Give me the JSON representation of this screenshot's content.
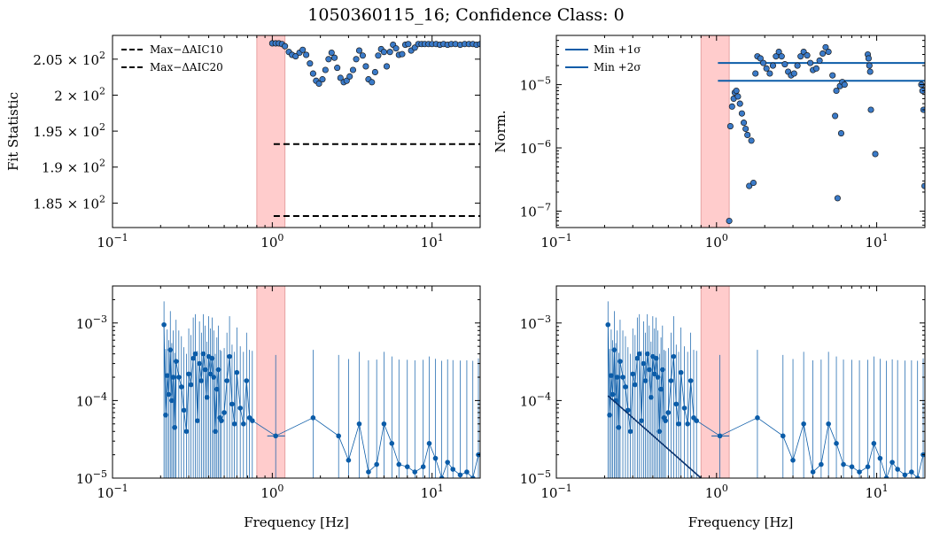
{
  "figure": {
    "title": "1050360115_16; Confidence Class: 0"
  },
  "colors": {
    "band_fill": "#ffcccc",
    "band_edge": "#e6a3a3",
    "points": "#3a7ac8",
    "point_edge": "#1a1a1a",
    "lines": "#0b5ca8",
    "axes": "#000000"
  },
  "chart_data": [
    {
      "id": "fit-statistic",
      "type": "scatter",
      "title": "",
      "xlabel": "",
      "ylabel": "Fit Statistic",
      "xscale": "log",
      "yscale": "linear",
      "xlim": [
        0.1,
        20
      ],
      "ylim": [
        181.6,
        208.3
      ],
      "x_ticks": [
        {
          "value": 0.1,
          "base": "10",
          "exp": "−1"
        },
        {
          "value": 1,
          "base": "10",
          "exp": "0"
        },
        {
          "value": 10,
          "base": "10",
          "exp": "1"
        }
      ],
      "y_ticks": [
        {
          "value": 185,
          "mant": "1.85 × 10",
          "exp": "2"
        },
        {
          "value": 190,
          "mant": "1.9 × 10",
          "exp": "2"
        },
        {
          "value": 195,
          "mant": "1.95 × 10",
          "exp": "2"
        },
        {
          "value": 200,
          "mant": "2 × 10",
          "exp": "2"
        },
        {
          "value": 205,
          "mant": "2.05 × 10",
          "exp": "2"
        }
      ],
      "shaded_band": [
        0.8,
        1.2
      ],
      "legend": {
        "position": "top-left",
        "entries": [
          "Max−ΔAIC10",
          "Max−ΔAIC20"
        ]
      },
      "hlines": [
        {
          "label": "Max−ΔAIC10",
          "y": 193.2,
          "x_from": 1.02,
          "x_to": 20,
          "style": "dashed"
        },
        {
          "label": "Max−ΔAIC20",
          "y": 183.2,
          "x_from": 1.02,
          "x_to": 20,
          "style": "dashed"
        }
      ],
      "x": [
        1.0,
        1.05,
        1.1,
        1.15,
        1.2,
        1.27,
        1.33,
        1.4,
        1.48,
        1.55,
        1.63,
        1.72,
        1.8,
        1.88,
        1.96,
        2.06,
        2.15,
        2.25,
        2.35,
        2.45,
        2.55,
        2.67,
        2.8,
        2.92,
        3.05,
        3.2,
        3.35,
        3.5,
        3.68,
        3.85,
        4.0,
        4.2,
        4.4,
        4.6,
        4.8,
        5.0,
        5.2,
        5.45,
        5.7,
        5.95,
        6.2,
        6.5,
        6.8,
        7.1,
        7.4,
        7.8,
        8.2,
        8.6,
        9.0,
        9.5,
        10.0,
        10.6,
        11.2,
        11.8,
        12.5,
        13.2,
        14.0,
        15.0,
        16.0,
        17.0,
        18.0,
        19.0,
        20.0
      ],
      "y": [
        207.2,
        207.2,
        207.2,
        207.1,
        206.8,
        206.0,
        205.6,
        205.4,
        205.9,
        206.3,
        205.6,
        204.4,
        203.0,
        202.0,
        201.6,
        202.2,
        203.5,
        205.0,
        205.9,
        205.2,
        203.8,
        202.4,
        201.8,
        202.0,
        202.6,
        203.5,
        205.0,
        206.2,
        205.5,
        204.0,
        202.2,
        201.8,
        203.2,
        205.5,
        206.4,
        206.0,
        204.0,
        206.0,
        207.0,
        206.5,
        205.6,
        205.7,
        207.0,
        207.1,
        206.2,
        206.6,
        207.1,
        207.1,
        207.1,
        207.1,
        207.1,
        207.1,
        207.0,
        207.1,
        207.0,
        207.1,
        207.1,
        207.0,
        207.1,
        207.1,
        207.1,
        207.0,
        207.1
      ]
    },
    {
      "id": "norm",
      "type": "scatter",
      "title": "",
      "xlabel": "",
      "ylabel": "Norm.",
      "xscale": "log",
      "yscale": "log",
      "xlim": [
        0.1,
        20
      ],
      "ylim": [
        5.5e-08,
        6e-05
      ],
      "x_ticks": [
        {
          "value": 0.1,
          "base": "10",
          "exp": "−1"
        },
        {
          "value": 1,
          "base": "10",
          "exp": "0"
        },
        {
          "value": 10,
          "base": "10",
          "exp": "1"
        }
      ],
      "y_ticks": [
        {
          "value": 1e-07,
          "base": "10",
          "exp": "−7"
        },
        {
          "value": 1e-06,
          "base": "10",
          "exp": "−6"
        },
        {
          "value": 1e-05,
          "base": "10",
          "exp": "−5"
        }
      ],
      "shaded_band": [
        0.8,
        1.2
      ],
      "legend": {
        "position": "top-left",
        "entries": [
          "Min +1σ",
          "Min +2σ"
        ]
      },
      "hlines": [
        {
          "label": "Min +1σ",
          "y": 2.2e-05,
          "x_from": 1.02,
          "x_to": 20,
          "style": "solid"
        },
        {
          "label": "Min +2σ",
          "y": 1.15e-05,
          "x_from": 1.02,
          "x_to": 20,
          "style": "solid"
        }
      ],
      "x": [
        1.2,
        1.22,
        1.25,
        1.28,
        1.3,
        1.33,
        1.36,
        1.4,
        1.44,
        1.48,
        1.52,
        1.56,
        1.6,
        1.65,
        1.7,
        1.75,
        1.8,
        1.88,
        1.96,
        2.05,
        2.15,
        2.25,
        2.35,
        2.45,
        2.55,
        2.67,
        2.8,
        2.92,
        3.05,
        3.2,
        3.35,
        3.5,
        3.68,
        3.85,
        4.0,
        4.2,
        4.4,
        4.6,
        4.8,
        5.0,
        5.3,
        5.6,
        5.9,
        6.1,
        6.3,
        8.8,
        8.9,
        9.0,
        9.1,
        9.8,
        19.0,
        19.3,
        19.6,
        19.9,
        5.5,
        5.7,
        6.0,
        9.2
      ],
      "y": [
        7e-08,
        2.2e-06,
        4.5e-06,
        6e-06,
        7.5e-06,
        8e-06,
        6.5e-06,
        5e-06,
        3.5e-06,
        2.5e-06,
        2e-06,
        1.6e-06,
        2.5e-07,
        1.3e-06,
        2.8e-07,
        1.5e-05,
        2.8e-05,
        2.6e-05,
        2.2e-05,
        1.8e-05,
        1.5e-05,
        2e-05,
        2.8e-05,
        3.3e-05,
        2.8e-05,
        2.1e-05,
        1.6e-05,
        1.4e-05,
        1.5e-05,
        2e-05,
        2.8e-05,
        3.3e-05,
        2.9e-05,
        2.2e-05,
        1.7e-05,
        1.8e-05,
        2.4e-05,
        3.1e-05,
        3.9e-05,
        3.3e-05,
        1.4e-05,
        8e-06,
        9.5e-06,
        1.1e-05,
        1e-05,
        3e-05,
        2.6e-05,
        2e-05,
        1.6e-05,
        8e-07,
        1e-05,
        8e-06,
        4e-06,
        2.5e-07,
        3.2e-06,
        1.6e-07,
        1.7e-06,
        4e-06
      ]
    },
    {
      "id": "psd-1",
      "type": "line",
      "title": "",
      "xlabel": "Frequency [Hz]",
      "ylabel": "",
      "xscale": "log",
      "yscale": "log",
      "xlim": [
        0.1,
        20
      ],
      "ylim": [
        1e-05,
        0.003
      ],
      "x_ticks": [
        {
          "value": 0.1,
          "base": "10",
          "exp": "−1"
        },
        {
          "value": 1,
          "base": "10",
          "exp": "0"
        },
        {
          "value": 10,
          "base": "10",
          "exp": "1"
        }
      ],
      "y_ticks": [
        {
          "value": 1e-05,
          "base": "10",
          "exp": "−5"
        },
        {
          "value": 0.0001,
          "base": "10",
          "exp": "−4"
        },
        {
          "value": 0.001,
          "base": "10",
          "exp": "−3"
        }
      ],
      "shaded_band": [
        0.8,
        1.2
      ],
      "x": [
        0.21,
        0.215,
        0.22,
        0.225,
        0.23,
        0.235,
        0.24,
        0.245,
        0.25,
        0.26,
        0.27,
        0.28,
        0.29,
        0.3,
        0.31,
        0.32,
        0.33,
        0.34,
        0.35,
        0.36,
        0.37,
        0.38,
        0.39,
        0.4,
        0.41,
        0.42,
        0.43,
        0.44,
        0.45,
        0.46,
        0.47,
        0.48,
        0.5,
        0.52,
        0.54,
        0.56,
        0.58,
        0.6,
        0.63,
        0.66,
        0.69,
        0.72,
        0.75,
        1.05,
        1.8,
        2.6,
        3.0,
        3.5,
        4.0,
        4.5,
        5.0,
        5.6,
        6.2,
        7.0,
        7.8,
        8.8,
        9.6,
        10.5,
        11.5,
        12.5,
        13.5,
        15.0,
        16.5,
        18.0,
        19.5
      ],
      "y": [
        0.00095,
        6.5e-05,
        0.00021,
        0.00012,
        0.00045,
        0.0001,
        0.0002,
        4.5e-05,
        0.00032,
        0.0002,
        0.00015,
        7.5e-05,
        4e-05,
        0.00022,
        0.00016,
        0.00035,
        0.0004,
        5.5e-05,
        0.0003,
        0.00018,
        0.0004,
        0.00025,
        0.00011,
        0.00037,
        0.00022,
        0.00035,
        0.0002,
        4e-05,
        0.00014,
        0.00025,
        6e-05,
        5.5e-05,
        7e-05,
        0.00018,
        0.00037,
        9e-05,
        5e-05,
        0.00023,
        8e-05,
        5e-05,
        0.00018,
        6e-05,
        5.5e-05,
        3.5e-05,
        6e-05,
        3.5e-05,
        1.7e-05,
        5e-05,
        1.2e-05,
        1.5e-05,
        5e-05,
        2.8e-05,
        1.5e-05,
        1.4e-05,
        1.2e-05,
        1.4e-05,
        2.8e-05,
        1.8e-05,
        1e-05,
        1.6e-05,
        1.3e-05,
        1.1e-05,
        1.2e-05,
        1e-05,
        2e-05
      ],
      "error_high": 0.0019,
      "model_line": null
    },
    {
      "id": "psd-2",
      "type": "line",
      "title": "",
      "xlabel": "Frequency [Hz]",
      "ylabel": "",
      "xscale": "log",
      "yscale": "log",
      "xlim": [
        0.1,
        20
      ],
      "ylim": [
        1e-05,
        0.003
      ],
      "x_ticks": [
        {
          "value": 0.1,
          "base": "10",
          "exp": "−1"
        },
        {
          "value": 1,
          "base": "10",
          "exp": "0"
        },
        {
          "value": 10,
          "base": "10",
          "exp": "1"
        }
      ],
      "y_ticks": [
        {
          "value": 1e-05,
          "base": "10",
          "exp": "−5"
        },
        {
          "value": 0.0001,
          "base": "10",
          "exp": "−4"
        },
        {
          "value": 0.001,
          "base": "10",
          "exp": "−3"
        }
      ],
      "shaded_band": [
        0.8,
        1.2
      ],
      "x": [
        0.21,
        0.215,
        0.22,
        0.225,
        0.23,
        0.235,
        0.24,
        0.245,
        0.25,
        0.26,
        0.27,
        0.28,
        0.29,
        0.3,
        0.31,
        0.32,
        0.33,
        0.34,
        0.35,
        0.36,
        0.37,
        0.38,
        0.39,
        0.4,
        0.41,
        0.42,
        0.43,
        0.44,
        0.45,
        0.46,
        0.47,
        0.48,
        0.5,
        0.52,
        0.54,
        0.56,
        0.58,
        0.6,
        0.63,
        0.66,
        0.69,
        0.72,
        0.75,
        1.05,
        1.8,
        2.6,
        3.0,
        3.5,
        4.0,
        4.5,
        5.0,
        5.6,
        6.2,
        7.0,
        7.8,
        8.8,
        9.6,
        10.5,
        11.5,
        12.5,
        13.5,
        15.0,
        16.5,
        18.0,
        19.5
      ],
      "y": [
        0.00095,
        6.5e-05,
        0.00021,
        0.00012,
        0.00045,
        0.0001,
        0.0002,
        4.5e-05,
        0.00032,
        0.0002,
        0.00015,
        7.5e-05,
        4e-05,
        0.00022,
        0.00016,
        0.00035,
        0.0004,
        5.5e-05,
        0.0003,
        0.00018,
        0.0004,
        0.00025,
        0.00011,
        0.00037,
        0.00022,
        0.00035,
        0.0002,
        4e-05,
        0.00014,
        0.00025,
        6e-05,
        5.5e-05,
        7e-05,
        0.00018,
        0.00037,
        9e-05,
        5e-05,
        0.00023,
        8e-05,
        5e-05,
        0.00018,
        6e-05,
        5.5e-05,
        3.5e-05,
        6e-05,
        3.5e-05,
        1.7e-05,
        5e-05,
        1.2e-05,
        1.5e-05,
        5e-05,
        2.8e-05,
        1.5e-05,
        1.4e-05,
        1.2e-05,
        1.4e-05,
        2.8e-05,
        1.8e-05,
        1e-05,
        1.6e-05,
        1.3e-05,
        1.1e-05,
        1.2e-05,
        1e-05,
        2e-05
      ],
      "error_high": 0.0019,
      "model_line": {
        "x": [
          0.21,
          0.8
        ],
        "y": [
          0.000115,
          1e-05
        ]
      }
    }
  ]
}
